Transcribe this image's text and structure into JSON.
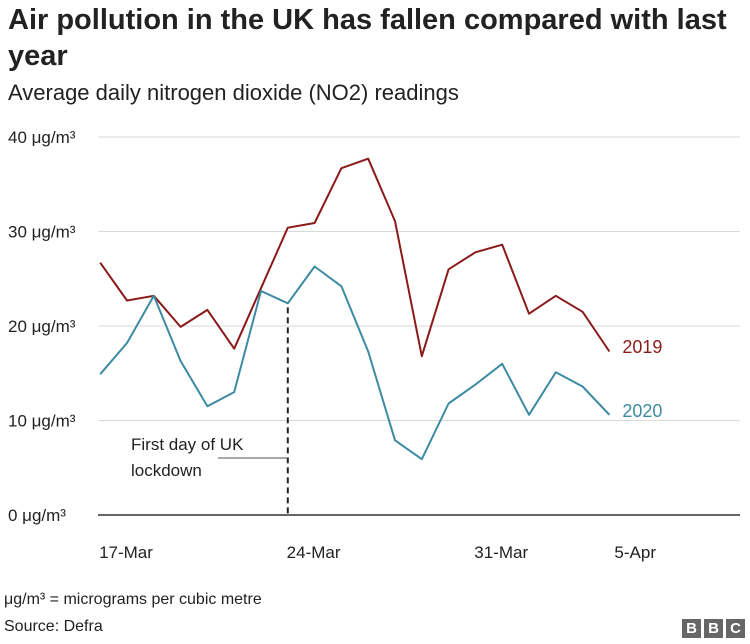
{
  "title": "Air pollution in the UK has fallen compared with last year",
  "subtitle": "Average daily nitrogen dioxide (NO2) readings",
  "footnote": "μg/m³ = micrograms per cubic metre",
  "source": "Source: Defra",
  "logo": [
    "B",
    "B",
    "C"
  ],
  "chart_data": {
    "type": "line",
    "x": [
      "2020-03-16",
      "2020-03-17",
      "2020-03-18",
      "2020-03-19",
      "2020-03-20",
      "2020-03-21",
      "2020-03-22",
      "2020-03-23",
      "2020-03-24",
      "2020-03-25",
      "2020-03-26",
      "2020-03-27",
      "2020-03-28",
      "2020-03-29",
      "2020-03-30",
      "2020-03-31",
      "2020-04-01",
      "2020-04-02",
      "2020-04-03",
      "2020-04-04",
      "2020-04-05"
    ],
    "x_ticks": [
      {
        "value": "2020-03-17",
        "label": "17-Mar"
      },
      {
        "value": "2020-03-24",
        "label": "24-Mar"
      },
      {
        "value": "2020-03-31",
        "label": "31-Mar"
      },
      {
        "value": "2020-04-05",
        "label": "5-Apr"
      }
    ],
    "x_range": [
      "2020-03-16",
      "2020-04-09"
    ],
    "ylim": [
      0,
      40
    ],
    "y_ticks": [
      {
        "value": 0,
        "label": "0 μg/m³"
      },
      {
        "value": 10,
        "label": "10 μg/m³"
      },
      {
        "value": 20,
        "label": "20 μg/m³"
      },
      {
        "value": 30,
        "label": "30 μg/m³"
      },
      {
        "value": 40,
        "label": "40 μg/m³"
      }
    ],
    "grid": true,
    "series": [
      {
        "name": "2019",
        "color": "#8b1a1a",
        "values": [
          26.7,
          22.7,
          23.2,
          19.9,
          21.7,
          17.6,
          24.0,
          30.4,
          30.9,
          36.7,
          37.7,
          31.1,
          16.8,
          26.0,
          27.8,
          28.6,
          21.3,
          23.2,
          21.5,
          17.3,
          null
        ]
      },
      {
        "name": "2020",
        "color": "#3d8aa3",
        "values": [
          14.9,
          18.2,
          23.2,
          16.3,
          11.5,
          13.0,
          23.7,
          22.4,
          26.3,
          24.2,
          17.3,
          7.9,
          5.9,
          11.8,
          13.8,
          16.0,
          10.6,
          15.1,
          13.6,
          10.6,
          null
        ]
      }
    ],
    "annotation": {
      "x": "2020-03-23",
      "text": [
        "First day of UK",
        "lockdown"
      ]
    }
  }
}
